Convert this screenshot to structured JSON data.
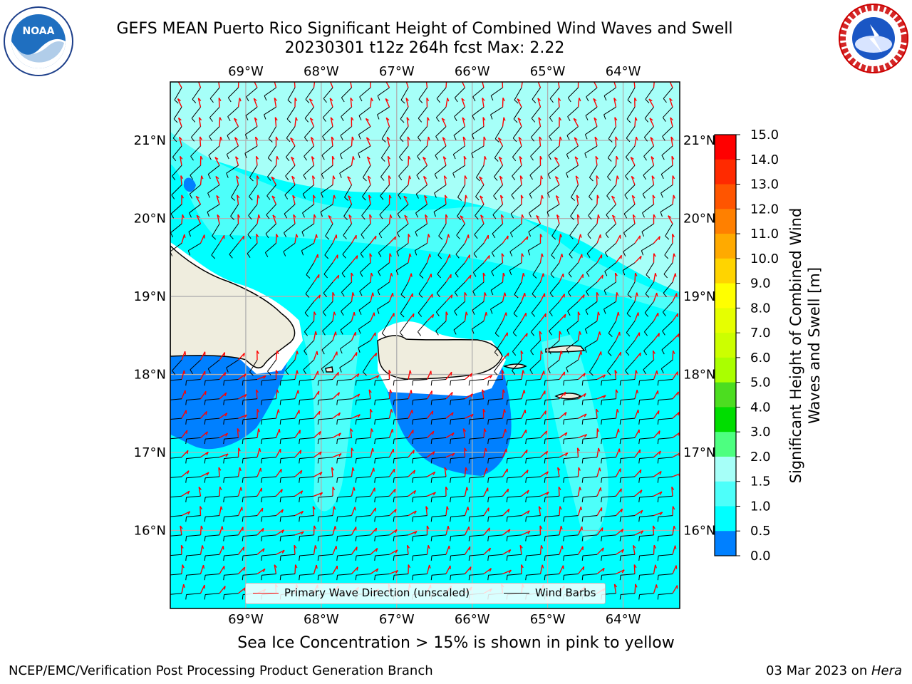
{
  "title": {
    "line1": "GEFS MEAN Puerto Rico Significant Height of Combined Wind Waves and Swell",
    "line2": "20230301 t12z 264h fcst   Max: 2.22"
  },
  "logos": {
    "left": {
      "name": "noaa-logo",
      "text": "NOAA"
    },
    "right": {
      "name": "nws-logo",
      "text": "NATIONAL WEATHER SERVICE"
    }
  },
  "map": {
    "lon_labels": [
      "69°W",
      "68°W",
      "67°W",
      "66°W",
      "65°W",
      "64°W"
    ],
    "lat_labels": [
      "21°N",
      "20°N",
      "19°N",
      "18°N",
      "17°N",
      "16°N"
    ],
    "lon_values": [
      -69,
      -68,
      -67,
      -66,
      -65,
      -64
    ],
    "lat_values": [
      21,
      20,
      19,
      18,
      17,
      16
    ],
    "lon_range": [
      -70,
      -63.25
    ],
    "lat_range": [
      15.0,
      21.75
    ],
    "colors": {
      "land": "#efedde",
      "band_0_0_5": "#0000ff",
      "band_0_5_1_0": "#0080ff",
      "band_1_0_1_5": "#00ffff",
      "band_1_5_2_0": "#4dfffa",
      "band_2_0_3_0": "#a6fff8",
      "wave_arrow": "#ff0000",
      "wind_barb": "#000000",
      "grid": "#b0b0b0"
    }
  },
  "legend": {
    "wave_label": "Primary Wave Direction (unscaled)",
    "barb_label": "Wind Barbs"
  },
  "colorbar": {
    "title": "Significant Height of Combined Wind Waves and Swell [m]",
    "ticks": [
      "15.0",
      "14.0",
      "13.0",
      "12.0",
      "11.0",
      "10.0",
      "9.0",
      "8.0",
      "7.0",
      "6.0",
      "5.0",
      "4.0",
      "3.0",
      "2.0",
      "1.5",
      "1.0",
      "0.5",
      "0.0"
    ],
    "colors": [
      "#ff0000",
      "#ff2a00",
      "#ff5500",
      "#ff8000",
      "#ffaa00",
      "#ffd400",
      "#ffff00",
      "#e6ff00",
      "#ccff00",
      "#aaff00",
      "#4cdd20",
      "#00dd00",
      "#4dff80",
      "#a6fff8",
      "#4dfffa",
      "#00ffff",
      "#0080ff",
      "#0000ff"
    ]
  },
  "caption": "Sea Ice Concentration > 15% is shown in pink to yellow",
  "footer": {
    "left": "NCEP/EMC/Verification Post Processing Product Generation Branch",
    "right_date": "03 Mar 2023 on ",
    "right_host": "Hera"
  }
}
